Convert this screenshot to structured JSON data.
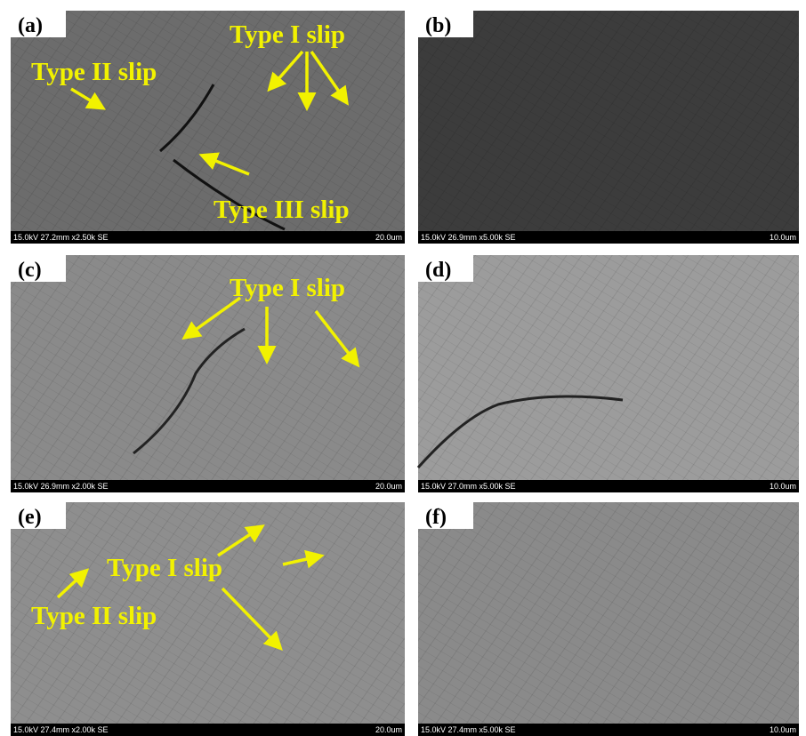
{
  "panels": [
    {
      "label": "(a)",
      "info": "15.0kV 27.2mm x2.50k SE",
      "scale": "20.0um",
      "annotations": [
        "Type I slip",
        "Type II slip",
        "Type III slip"
      ]
    },
    {
      "label": "(b)",
      "info": "15.0kV 26.9mm x5.00k SE",
      "scale": "10.0um",
      "annotations": []
    },
    {
      "label": "(c)",
      "info": "15.0kV 26.9mm x2.00k SE",
      "scale": "20.0um",
      "annotations": [
        "Type I slip"
      ]
    },
    {
      "label": "(d)",
      "info": "15.0kV 27.0mm x5.00k SE",
      "scale": "10.0um",
      "annotations": []
    },
    {
      "label": "(e)",
      "info": "15.0kV 27.4mm x2.00k SE",
      "scale": "20.0um",
      "annotations": [
        "Type I slip",
        "Type II slip"
      ]
    },
    {
      "label": "(f)",
      "info": "15.0kV 27.4mm x5.00k SE",
      "scale": "10.0um",
      "annotations": []
    }
  ]
}
